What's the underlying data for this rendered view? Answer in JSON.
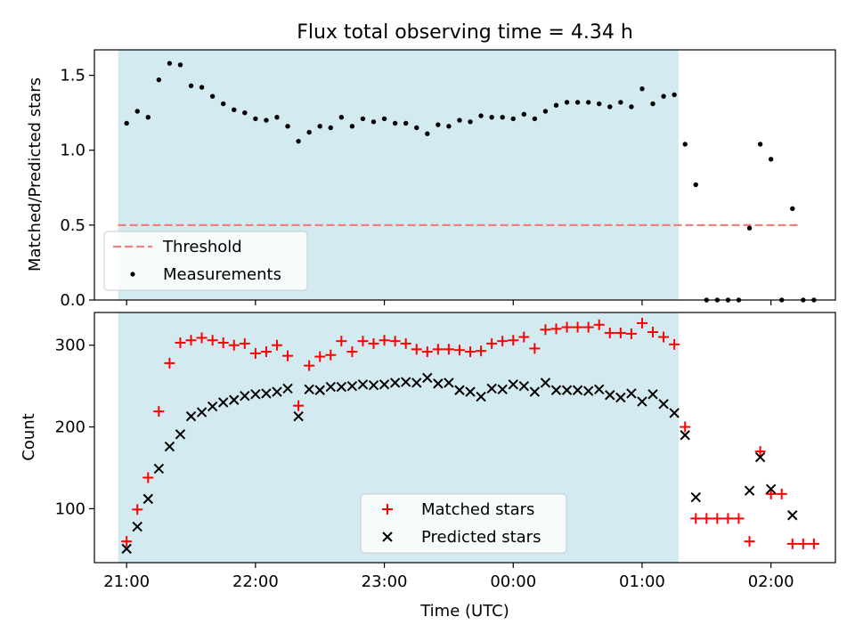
{
  "chart_data": [
    {
      "type": "scatter",
      "title": "Flux total observing time = 4.34 h",
      "xlabel": "",
      "ylabel": "Matched/Predicted stars",
      "x_ticks": [
        "21:00",
        "22:00",
        "23:00",
        "00:00",
        "01:00",
        "02:00"
      ],
      "x_range": [
        "20:45",
        "02:30"
      ],
      "ylim": [
        0,
        1.67
      ],
      "y_ticks": [
        "0.0",
        "0.5",
        "1.0",
        "1.5"
      ],
      "shaded_span": [
        "20:56",
        "01:17"
      ],
      "shade_color": "#d3eaf0",
      "legend_position": "lower-left",
      "threshold": {
        "name": "Threshold",
        "value": 0.5,
        "x_range": [
          "20:56",
          "02:13"
        ],
        "color": "#f08080",
        "style": "dashed"
      },
      "series": [
        {
          "name": "Measurements",
          "color": "#000000",
          "marker": "dot",
          "points": [
            [
              "21:00",
              1.18
            ],
            [
              "21:05",
              1.26
            ],
            [
              "21:10",
              1.22
            ],
            [
              "21:15",
              1.47
            ],
            [
              "21:20",
              1.58
            ],
            [
              "21:25",
              1.57
            ],
            [
              "21:30",
              1.43
            ],
            [
              "21:35",
              1.42
            ],
            [
              "21:40",
              1.36
            ],
            [
              "21:45",
              1.31
            ],
            [
              "21:50",
              1.27
            ],
            [
              "21:55",
              1.25
            ],
            [
              "22:00",
              1.21
            ],
            [
              "22:05",
              1.2
            ],
            [
              "22:10",
              1.22
            ],
            [
              "22:15",
              1.16
            ],
            [
              "22:20",
              1.06
            ],
            [
              "22:25",
              1.12
            ],
            [
              "22:30",
              1.16
            ],
            [
              "22:35",
              1.15
            ],
            [
              "22:40",
              1.22
            ],
            [
              "22:45",
              1.16
            ],
            [
              "22:50",
              1.21
            ],
            [
              "22:55",
              1.19
            ],
            [
              "23:00",
              1.21
            ],
            [
              "23:05",
              1.18
            ],
            [
              "23:10",
              1.18
            ],
            [
              "23:15",
              1.15
            ],
            [
              "23:20",
              1.11
            ],
            [
              "23:25",
              1.17
            ],
            [
              "23:30",
              1.16
            ],
            [
              "23:35",
              1.2
            ],
            [
              "23:40",
              1.19
            ],
            [
              "23:45",
              1.23
            ],
            [
              "23:50",
              1.22
            ],
            [
              "23:55",
              1.22
            ],
            [
              "00:00",
              1.21
            ],
            [
              "00:05",
              1.24
            ],
            [
              "00:10",
              1.21
            ],
            [
              "00:15",
              1.26
            ],
            [
              "00:20",
              1.3
            ],
            [
              "00:25",
              1.32
            ],
            [
              "00:30",
              1.32
            ],
            [
              "00:35",
              1.32
            ],
            [
              "00:40",
              1.31
            ],
            [
              "00:45",
              1.29
            ],
            [
              "00:50",
              1.32
            ],
            [
              "00:55",
              1.29
            ],
            [
              "01:00",
              1.41
            ],
            [
              "01:05",
              1.31
            ],
            [
              "01:10",
              1.36
            ],
            [
              "01:15",
              1.37
            ],
            [
              "01:20",
              1.04
            ],
            [
              "01:25",
              0.77
            ],
            [
              "01:30",
              0.0
            ],
            [
              "01:35",
              0.0
            ],
            [
              "01:40",
              0.0
            ],
            [
              "01:45",
              0.0
            ],
            [
              "01:50",
              0.48
            ],
            [
              "01:55",
              1.04
            ],
            [
              "02:00",
              0.94
            ],
            [
              "02:05",
              0.0
            ],
            [
              "02:10",
              0.61
            ],
            [
              "02:15",
              0.0
            ],
            [
              "02:20",
              0.0
            ]
          ]
        }
      ]
    },
    {
      "type": "scatter",
      "title": "",
      "xlabel": "Time (UTC)",
      "ylabel": "Count",
      "x_ticks": [
        "21:00",
        "22:00",
        "23:00",
        "00:00",
        "01:00",
        "02:00"
      ],
      "x_range": [
        "20:45",
        "02:30"
      ],
      "ylim": [
        34,
        340
      ],
      "y_ticks": [
        "100",
        "200",
        "300"
      ],
      "shaded_span": [
        "20:56",
        "01:17"
      ],
      "shade_color": "#d3eaf0",
      "legend_position": "lower-center",
      "series": [
        {
          "name": "Matched stars",
          "color": "#ff0000",
          "marker": "plus",
          "points": [
            [
              "21:00",
              60
            ],
            [
              "21:05",
              99
            ],
            [
              "21:10",
              138
            ],
            [
              "21:15",
              219
            ],
            [
              "21:20",
              278
            ],
            [
              "21:25",
              303
            ],
            [
              "21:30",
              306
            ],
            [
              "21:35",
              309
            ],
            [
              "21:40",
              306
            ],
            [
              "21:45",
              303
            ],
            [
              "21:50",
              300
            ],
            [
              "21:55",
              302
            ],
            [
              "22:00",
              290
            ],
            [
              "22:05",
              292
            ],
            [
              "22:10",
              300
            ],
            [
              "22:15",
              287
            ],
            [
              "22:20",
              226
            ],
            [
              "22:25",
              275
            ],
            [
              "22:30",
              286
            ],
            [
              "22:35",
              288
            ],
            [
              "22:40",
              305
            ],
            [
              "22:45",
              292
            ],
            [
              "22:50",
              305
            ],
            [
              "22:55",
              302
            ],
            [
              "23:00",
              306
            ],
            [
              "23:05",
              305
            ],
            [
              "23:10",
              302
            ],
            [
              "23:15",
              295
            ],
            [
              "23:20",
              292
            ],
            [
              "23:25",
              295
            ],
            [
              "23:30",
              295
            ],
            [
              "23:35",
              294
            ],
            [
              "23:40",
              292
            ],
            [
              "23:45",
              293
            ],
            [
              "23:50",
              302
            ],
            [
              "23:55",
              305
            ],
            [
              "00:00",
              306
            ],
            [
              "00:05",
              310
            ],
            [
              "00:10",
              296
            ],
            [
              "00:15",
              319
            ],
            [
              "00:20",
              320
            ],
            [
              "00:25",
              322
            ],
            [
              "00:30",
              322
            ],
            [
              "00:35",
              322
            ],
            [
              "00:40",
              325
            ],
            [
              "00:45",
              315
            ],
            [
              "00:50",
              315
            ],
            [
              "00:55",
              314
            ],
            [
              "01:00",
              327
            ],
            [
              "01:05",
              316
            ],
            [
              "01:10",
              310
            ],
            [
              "01:15",
              301
            ],
            [
              "01:20",
              200
            ],
            [
              "01:25",
              88
            ],
            [
              "01:30",
              88
            ],
            [
              "01:35",
              88
            ],
            [
              "01:40",
              88
            ],
            [
              "01:45",
              88
            ],
            [
              "01:50",
              60
            ],
            [
              "01:55",
              170
            ],
            [
              "02:00",
              118
            ],
            [
              "02:05",
              118
            ],
            [
              "02:10",
              57
            ],
            [
              "02:15",
              57
            ],
            [
              "02:20",
              57
            ]
          ]
        },
        {
          "name": "Predicted stars",
          "color": "#000000",
          "marker": "x",
          "points": [
            [
              "21:00",
              51
            ],
            [
              "21:05",
              78
            ],
            [
              "21:10",
              112
            ],
            [
              "21:15",
              149
            ],
            [
              "21:20",
              176
            ],
            [
              "21:25",
              191
            ],
            [
              "21:30",
              213
            ],
            [
              "21:35",
              218
            ],
            [
              "21:40",
              225
            ],
            [
              "21:45",
              230
            ],
            [
              "21:50",
              233
            ],
            [
              "21:55",
              238
            ],
            [
              "22:00",
              240
            ],
            [
              "22:05",
              241
            ],
            [
              "22:10",
              243
            ],
            [
              "22:15",
              247
            ],
            [
              "22:20",
              213
            ],
            [
              "22:25",
              246
            ],
            [
              "22:30",
              245
            ],
            [
              "22:35",
              249
            ],
            [
              "22:40",
              249
            ],
            [
              "22:45",
              250
            ],
            [
              "22:50",
              252
            ],
            [
              "22:55",
              251
            ],
            [
              "23:00",
              252
            ],
            [
              "23:05",
              254
            ],
            [
              "23:10",
              255
            ],
            [
              "23:15",
              254
            ],
            [
              "23:20",
              260
            ],
            [
              "23:25",
              253
            ],
            [
              "23:30",
              254
            ],
            [
              "23:35",
              245
            ],
            [
              "23:40",
              243
            ],
            [
              "23:45",
              237
            ],
            [
              "23:50",
              247
            ],
            [
              "23:55",
              246
            ],
            [
              "00:00",
              252
            ],
            [
              "00:05",
              250
            ],
            [
              "00:10",
              243
            ],
            [
              "00:15",
              254
            ],
            [
              "00:20",
              245
            ],
            [
              "00:25",
              245
            ],
            [
              "00:30",
              245
            ],
            [
              "00:35",
              244
            ],
            [
              "00:40",
              246
            ],
            [
              "00:45",
              239
            ],
            [
              "00:50",
              236
            ],
            [
              "00:55",
              241
            ],
            [
              "01:00",
              231
            ],
            [
              "01:05",
              240
            ],
            [
              "01:10",
              228
            ],
            [
              "01:15",
              217
            ],
            [
              "01:20",
              190
            ],
            [
              "01:25",
              114
            ],
            [
              "01:50",
              122
            ],
            [
              "01:55",
              163
            ],
            [
              "02:00",
              124
            ],
            [
              "02:10",
              92
            ]
          ]
        }
      ]
    }
  ]
}
